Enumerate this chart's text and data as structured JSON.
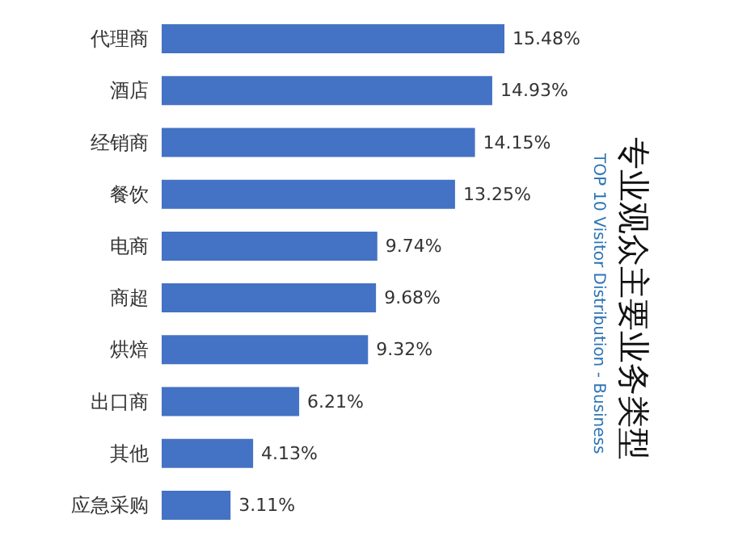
{
  "chart_data": {
    "type": "bar",
    "orientation": "horizontal",
    "title": "专业观众主要业务类型",
    "subtitle": "TOP 10 Visitor Distribution - Business",
    "categories": [
      "代理商",
      "酒店",
      "经销商",
      "餐饮",
      "电商",
      "商超",
      "烘焙",
      "出口商",
      "其他",
      "应急采购"
    ],
    "values": [
      15.48,
      14.93,
      14.15,
      13.25,
      9.74,
      9.68,
      9.32,
      6.21,
      4.13,
      3.11
    ],
    "value_labels": [
      "15.48%",
      "14.93%",
      "14.15%",
      "13.25%",
      "9.74%",
      "9.68%",
      "9.32%",
      "6.21%",
      "4.13%",
      "3.11%"
    ],
    "color": "#4472c4"
  }
}
